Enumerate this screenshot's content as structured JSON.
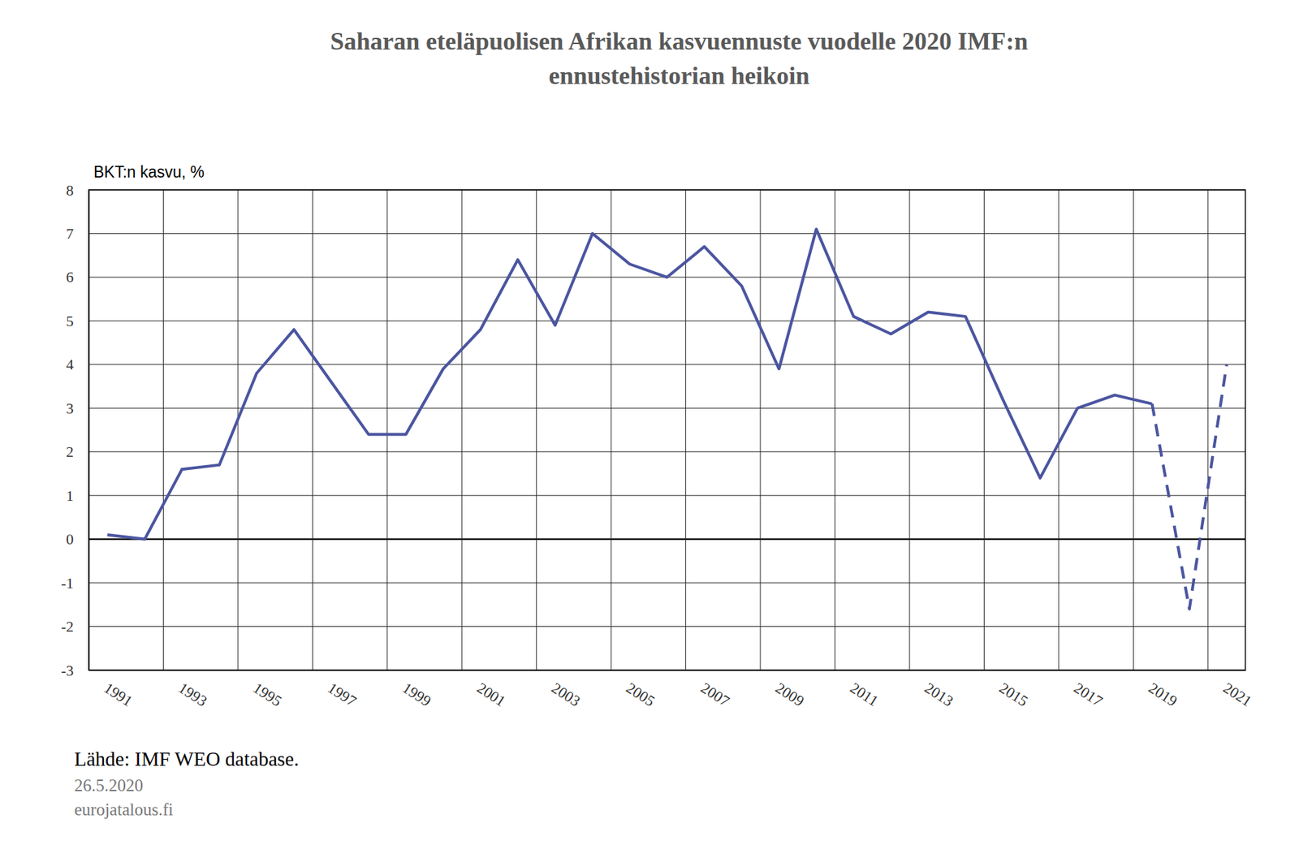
{
  "chart_data": {
    "type": "line",
    "title": [
      "Saharan eteläpuolisen Afrikan kasvuennuste vuodelle 2020  IMF:n",
      "ennustehistorian heikoin"
    ],
    "y_label": "BKT:n kasvu, %",
    "source": "Lähde: IMF WEO database.",
    "date": "26.5.2020",
    "website": "eurojatalous.fi",
    "categories": [
      "1991",
      null,
      "1993",
      null,
      "1995",
      null,
      "1997",
      null,
      "1999",
      null,
      "2001",
      null,
      "2003",
      null,
      "2005",
      null,
      "2007",
      null,
      "2009",
      null,
      "2011",
      null,
      "2013",
      null,
      "2015",
      null,
      "2017",
      null,
      "2019",
      null,
      "2021"
    ],
    "series": [
      {
        "color": "#4b55a0",
        "line_style": "solid",
        "values": [
          0.1,
          0.0,
          1.6,
          1.7,
          3.8,
          4.8,
          3.6,
          2.4,
          2.4,
          3.9,
          4.8,
          6.4,
          4.9,
          7.0,
          6.3,
          6.0,
          6.7,
          5.8,
          3.9,
          7.1,
          5.1,
          4.7,
          5.2,
          5.1,
          3.2,
          1.4,
          3.0,
          3.3,
          3.1,
          null,
          null
        ]
      },
      {
        "color": "#4b55a0",
        "line_style": "dashed",
        "values": [
          null,
          null,
          null,
          null,
          null,
          null,
          null,
          null,
          null,
          null,
          null,
          null,
          null,
          null,
          null,
          null,
          null,
          null,
          null,
          null,
          null,
          null,
          null,
          null,
          null,
          null,
          null,
          null,
          3.1,
          -1.6,
          4.0
        ]
      }
    ],
    "ylim": [
      -3,
      8
    ],
    "yticks": [
      -3,
      -2,
      -1,
      0,
      1,
      2,
      3,
      4,
      5,
      6,
      7,
      8
    ],
    "grid": true
  }
}
